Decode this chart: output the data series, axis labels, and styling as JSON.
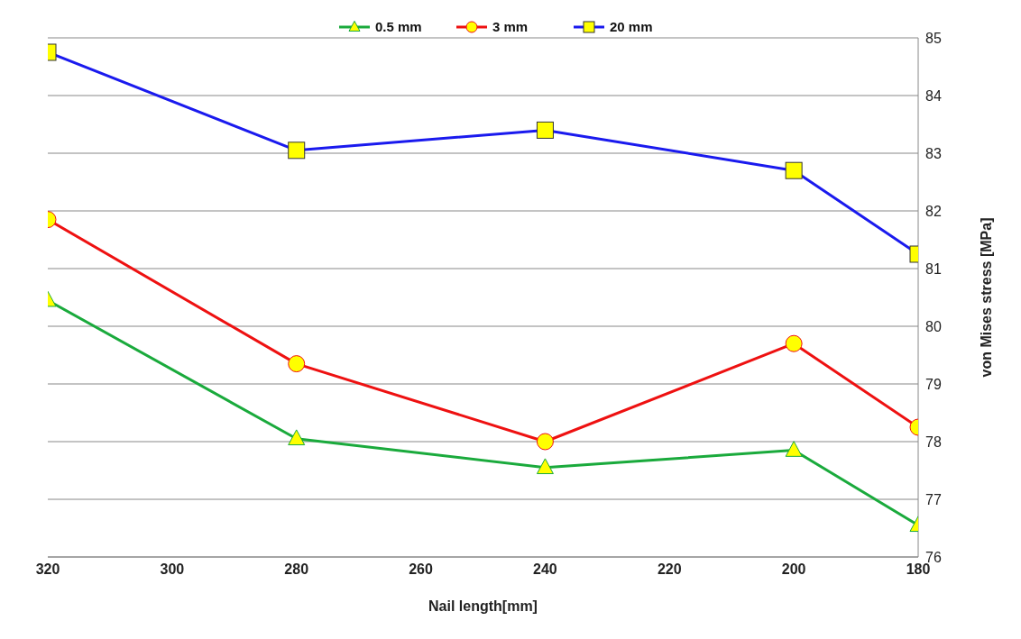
{
  "chart_data": {
    "type": "line",
    "xlabel": "Nail length[mm]",
    "ylabel": "von Mises stress [MPa]",
    "x": [
      320,
      280,
      240,
      200,
      180
    ],
    "series": [
      {
        "name": "0.5 mm",
        "color": "#1aaa3c",
        "marker": "triangle",
        "values": [
          80.45,
          78.05,
          77.55,
          77.85,
          76.55
        ]
      },
      {
        "name": "3 mm",
        "color": "#ee1111",
        "marker": "circle",
        "values": [
          81.85,
          79.35,
          78.0,
          79.7,
          78.25
        ]
      },
      {
        "name": "20 mm",
        "color": "#1a1aee",
        "marker": "square",
        "values": [
          84.75,
          83.05,
          83.4,
          82.7,
          81.25
        ]
      }
    ],
    "xlim": [
      320,
      180
    ],
    "xticks": [
      320,
      300,
      280,
      260,
      240,
      220,
      200,
      180
    ],
    "ylim": [
      76,
      85
    ],
    "yticks": [
      76,
      77,
      78,
      79,
      80,
      81,
      82,
      83,
      84,
      85
    ],
    "grid": "y",
    "legend": "top",
    "line_style": "solid"
  }
}
